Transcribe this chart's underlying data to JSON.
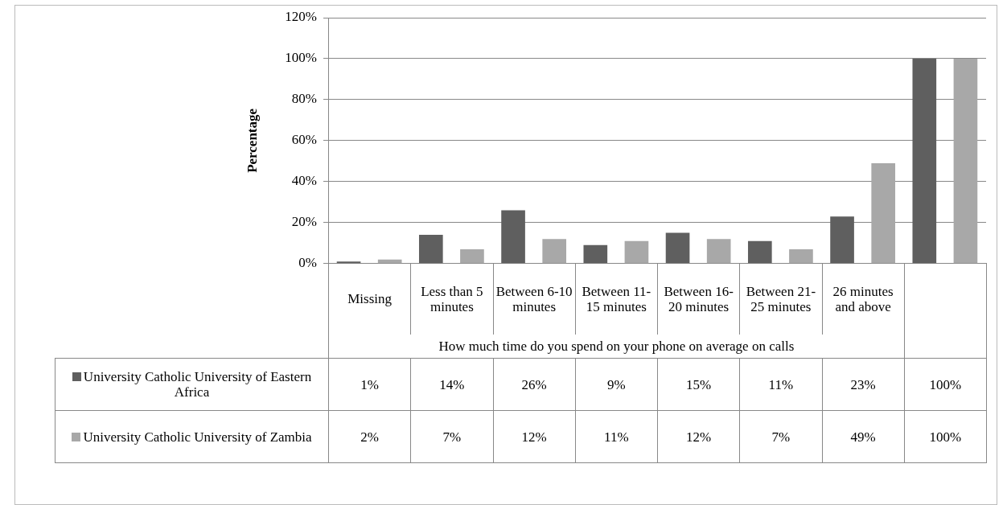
{
  "chart_data": {
    "type": "bar",
    "ylabel": "Percentage",
    "xlabel": "How much time do you spend on your phone on average on calls",
    "categories": [
      "Missing",
      "Less than 5 minutes",
      "Between 6-10 minutes",
      "Between 11-15 minutes",
      "Between 16-20 minutes",
      "Between 21-25 minutes",
      "26 minutes and above",
      null
    ],
    "series": [
      {
        "name": "University Catholic University of Eastern Africa",
        "color": "#5f5f5f",
        "values": [
          1,
          14,
          26,
          9,
          15,
          11,
          23,
          100
        ],
        "value_labels": [
          "1%",
          "14%",
          "26%",
          "9%",
          "15%",
          "11%",
          "23%",
          "100%"
        ]
      },
      {
        "name": "University Catholic University of Zambia",
        "color": "#a8a8a8",
        "values": [
          2,
          7,
          12,
          11,
          12,
          7,
          49,
          100
        ],
        "value_labels": [
          "2%",
          "7%",
          "12%",
          "11%",
          "12%",
          "7%",
          "49%",
          "100%"
        ]
      }
    ],
    "ylim": [
      0,
      120
    ],
    "yticks": [
      {
        "value": 0,
        "label": "0%"
      },
      {
        "value": 20,
        "label": "20%"
      },
      {
        "value": 40,
        "label": "40%"
      },
      {
        "value": 60,
        "label": "60%"
      },
      {
        "value": 80,
        "label": "80%"
      },
      {
        "value": 100,
        "label": "100%"
      },
      {
        "value": 120,
        "label": "120%"
      }
    ],
    "grid": "y",
    "legend": "bottom"
  }
}
